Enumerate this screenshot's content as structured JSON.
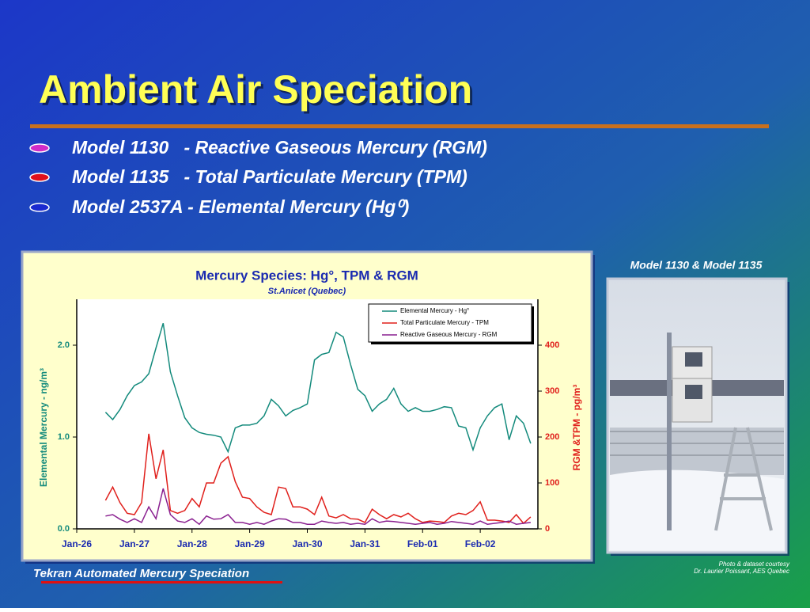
{
  "slide_title": "Ambient Air Speciation",
  "bullets": [
    "Model 1130   - Reactive Gaseous Mercury (RGM)",
    "Model 1135   - Total Particulate Mercury (TPM)",
    "Model 2537A - Elemental Mercury (Hg⁰)"
  ],
  "photo": {
    "caption": "Model 1130 & Model 1135",
    "credit": [
      "Photo & dataset courtesy",
      "Dr. Laurier Poissant, AES Quebec"
    ]
  },
  "footer": "Tekran Automated Mercury Speciation",
  "chart_data": {
    "type": "line",
    "title": "Mercury Species:  Hg°, TPM & RGM",
    "subtitle": "St.Anicet (Quebec)",
    "ylabel": "Elemental Mercury - ng/m³",
    "y2label": "RGM &TPM - pg/m³",
    "legend": "upper right",
    "xlim": [
      0,
      8
    ],
    "ylim": [
      0,
      2.5
    ],
    "y2lim": [
      0,
      500
    ],
    "xticks": [
      {
        "value": 0,
        "label": "Jan-26"
      },
      {
        "value": 1,
        "label": "Jan-27"
      },
      {
        "value": 2,
        "label": "Jan-28"
      },
      {
        "value": 3,
        "label": "Jan-29"
      },
      {
        "value": 4,
        "label": "Jan-30"
      },
      {
        "value": 5,
        "label": "Jan-31"
      },
      {
        "value": 6,
        "label": "Feb-01"
      },
      {
        "value": 7,
        "label": "Feb-02"
      }
    ],
    "yticks": [
      {
        "value": 0,
        "label": "0.0"
      },
      {
        "value": 1,
        "label": "1.0"
      },
      {
        "value": 2,
        "label": "2.0"
      }
    ],
    "y2ticks": [
      0,
      100,
      200,
      300,
      400
    ],
    "x": [
      0.5,
      0.625,
      0.75,
      0.875,
      1,
      1.125,
      1.25,
      1.375,
      1.5,
      1.625,
      1.75,
      1.875,
      2,
      2.125,
      2.25,
      2.375,
      2.5,
      2.625,
      2.75,
      2.875,
      3,
      3.125,
      3.25,
      3.375,
      3.5,
      3.625,
      3.75,
      3.875,
      4,
      4.125,
      4.25,
      4.375,
      4.5,
      4.625,
      4.75,
      4.875,
      5,
      5.125,
      5.25,
      5.375,
      5.5,
      5.625,
      5.75,
      5.875,
      6,
      6.125,
      6.25,
      6.375,
      6.5,
      6.625,
      6.75,
      6.875,
      7,
      7.125,
      7.25,
      7.375,
      7.5,
      7.625,
      7.75,
      7.875
    ],
    "series": [
      {
        "name": "Elemental Mercury - Hg°",
        "color": "#138a7c",
        "values": [
          1.27,
          1.19,
          1.3,
          1.45,
          1.56,
          1.6,
          1.69,
          1.97,
          2.24,
          1.71,
          1.45,
          1.21,
          1.1,
          1.05,
          1.03,
          1.02,
          1,
          0.84,
          1.1,
          1.13,
          1.13,
          1.15,
          1.23,
          1.41,
          1.34,
          1.23,
          1.29,
          1.32,
          1.36,
          1.84,
          1.9,
          1.92,
          2.14,
          2.09,
          1.79,
          1.52,
          1.45,
          1.28,
          1.36,
          1.41,
          1.53,
          1.36,
          1.28,
          1.32,
          1.28,
          1.28,
          1.3,
          1.33,
          1.32,
          1.12,
          1.1,
          0.86,
          1.1,
          1.23,
          1.32,
          1.36,
          0.97,
          1.23,
          1.15,
          0.93
        ]
      },
      {
        "name": "Total Particulate Mercury - TPM",
        "color": "#e0201c",
        "axis": "y2",
        "values": [
          62,
          91,
          57,
          34,
          31,
          57,
          207,
          109,
          172,
          40,
          34,
          40,
          66,
          48,
          100,
          100,
          143,
          157,
          103,
          69,
          66,
          48,
          36,
          31,
          91,
          88,
          48,
          48,
          43,
          31,
          69,
          28,
          24,
          31,
          22,
          21,
          14,
          43,
          31,
          22,
          31,
          26,
          34,
          22,
          14,
          17,
          16,
          14,
          28,
          34,
          31,
          40,
          59,
          19,
          19,
          17,
          14,
          31,
          12,
          26
        ]
      },
      {
        "name": "Reactive Gaseous Mercury - RGM",
        "color": "#8a2090",
        "axis": "y2",
        "values": [
          28,
          31,
          21,
          14,
          22,
          14,
          48,
          22,
          88,
          31,
          17,
          14,
          22,
          10,
          28,
          21,
          22,
          31,
          14,
          14,
          10,
          14,
          10,
          17,
          22,
          21,
          14,
          14,
          10,
          10,
          17,
          14,
          12,
          14,
          10,
          12,
          10,
          22,
          14,
          17,
          16,
          14,
          12,
          10,
          12,
          14,
          10,
          12,
          16,
          14,
          12,
          10,
          17,
          10,
          12,
          14,
          17,
          10,
          12,
          14
        ]
      }
    ]
  }
}
